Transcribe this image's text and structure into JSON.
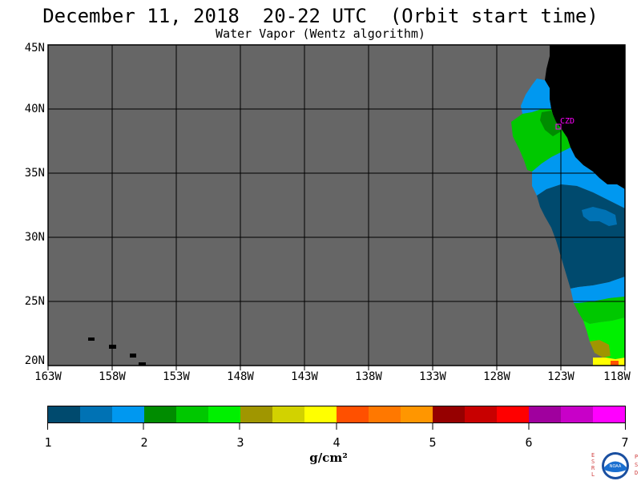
{
  "header": {
    "title": "December 11, 2018  20-22 UTC  (Orbit start time)",
    "subtitle": "Water Vapor (Wentz algorithm)"
  },
  "map": {
    "lat_labels": [
      "45N",
      "40N",
      "35N",
      "30N",
      "25N",
      "20N"
    ],
    "lon_labels": [
      "163W",
      "158W",
      "153W",
      "148W",
      "143W",
      "138W",
      "133W",
      "128W",
      "123W",
      "118W"
    ],
    "station_label": "CZD",
    "colors": {
      "no_data": "#666666",
      "land": "#000000",
      "grid": "#000000",
      "station": "#ff00ff"
    }
  },
  "colorbar": {
    "labels": [
      "1",
      "2",
      "3",
      "4",
      "5",
      "6",
      "7"
    ],
    "units": "g/cm²",
    "colors": [
      "#004a6e",
      "#0072b4",
      "#0098f0",
      "#008c00",
      "#00c800",
      "#00f000",
      "#a09600",
      "#d2d200",
      "#ffff00",
      "#ff5000",
      "#ff7800",
      "#ff9600",
      "#960000",
      "#c80000",
      "#ff0000",
      "#a0009e",
      "#c800c8",
      "#ff00ff"
    ]
  },
  "logo": {
    "left_text": "ESRL",
    "right_text": "PSD",
    "badge_text": "NOAA"
  }
}
